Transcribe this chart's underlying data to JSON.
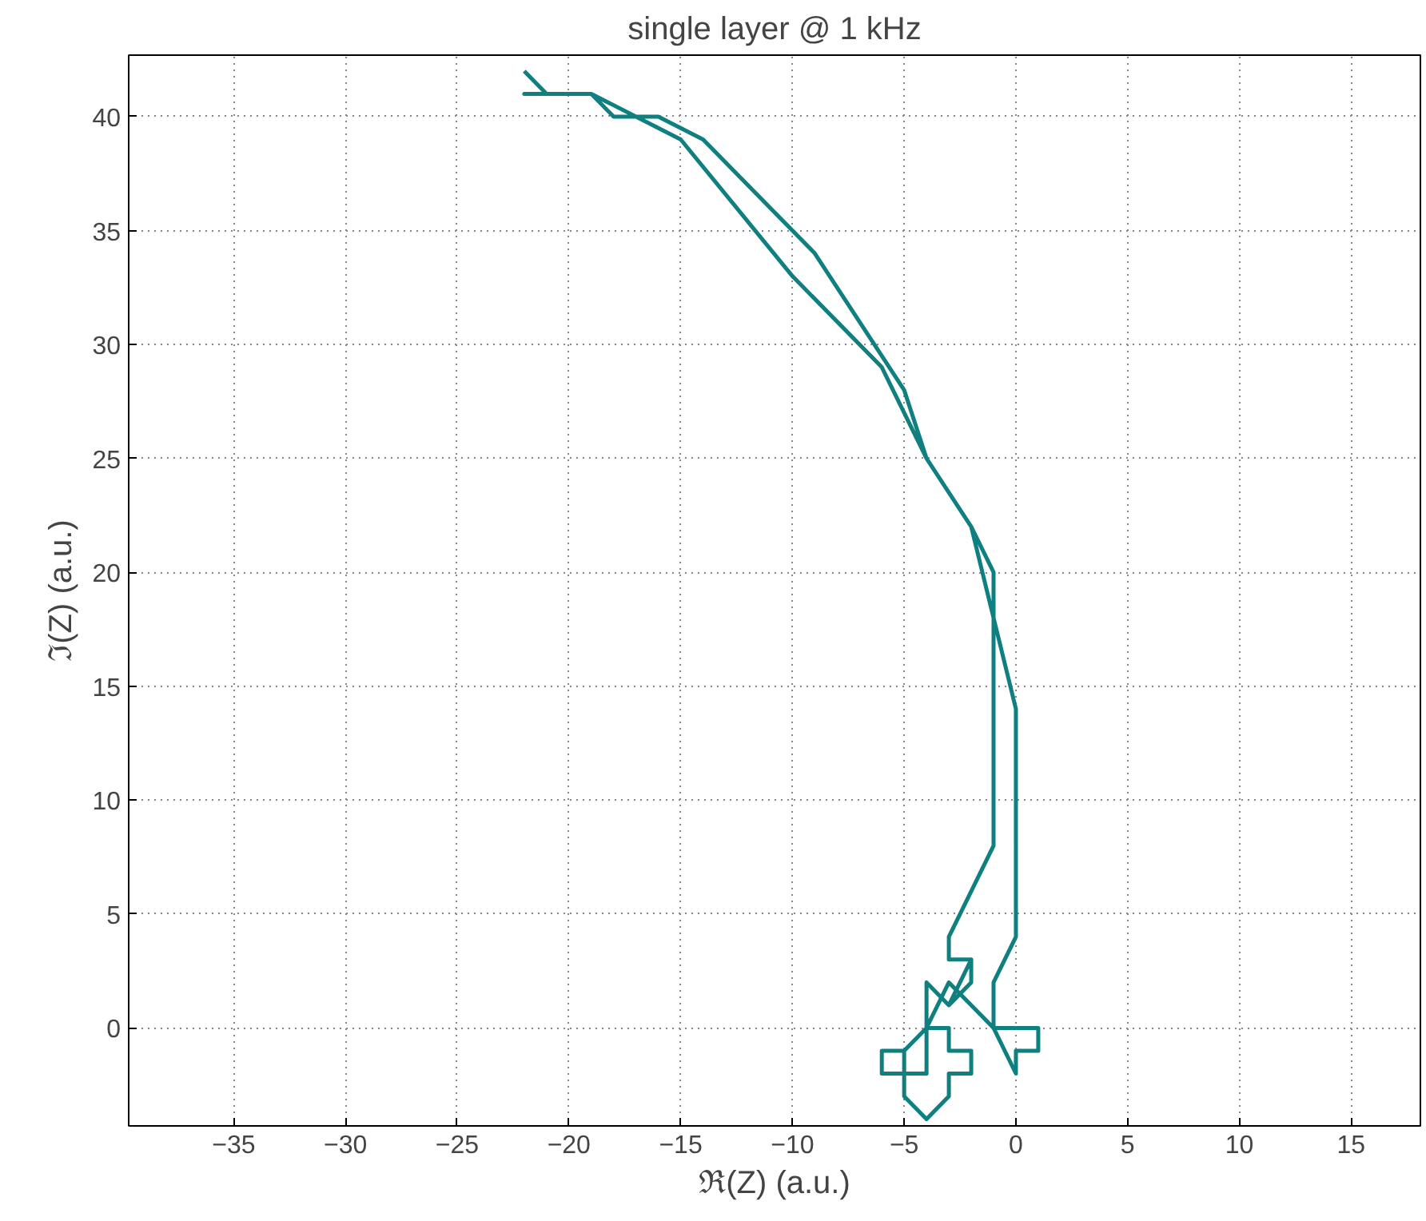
{
  "chart_data": {
    "type": "line",
    "title": "single layer @ 1 kHz",
    "xlabel": "ℜ(Z) (a.u.)",
    "ylabel": "ℑ(Z) (a.u.)",
    "x": [
      -22,
      -21,
      -22,
      -19,
      -17,
      -15,
      -10,
      -6,
      -4,
      -2,
      -1,
      -1,
      -3,
      -3,
      -2,
      -2,
      -3,
      -2,
      -3,
      -4,
      -4,
      -5,
      -6,
      -6,
      -4,
      -4,
      -3,
      -3,
      -2,
      -2,
      -3,
      -3,
      -4,
      -5,
      -5,
      -4,
      -3,
      -1,
      1,
      1,
      0,
      0,
      -1,
      -1,
      0,
      0,
      -2,
      -4,
      -5,
      -9,
      -14,
      -16,
      -18,
      -19
    ],
    "series": [
      {
        "color": "#0f7f7f",
        "values": [
          42,
          41,
          41,
          41,
          40,
          39,
          33,
          29,
          25,
          22,
          20,
          8,
          4,
          3,
          3,
          2,
          1,
          3,
          1,
          2,
          0,
          -1,
          -1,
          -2,
          -2,
          0,
          0,
          -1,
          -1,
          -2,
          -2,
          -3,
          -4,
          -3,
          -1,
          0,
          2,
          0,
          0,
          -1,
          -1,
          -2,
          0,
          2,
          4,
          14,
          22,
          25,
          28,
          34,
          39,
          40,
          40,
          41
        ]
      }
    ],
    "xlim": [
      -39.7,
      18.1
    ],
    "ylim": [
      -4.3,
      42.7
    ],
    "xticks": [
      -35,
      -30,
      -25,
      -20,
      -15,
      -10,
      -5,
      0,
      5,
      10,
      15
    ],
    "yticks": [
      0,
      5,
      10,
      15,
      20,
      25,
      30,
      35,
      40
    ],
    "grid": true,
    "line_style": "solid"
  }
}
